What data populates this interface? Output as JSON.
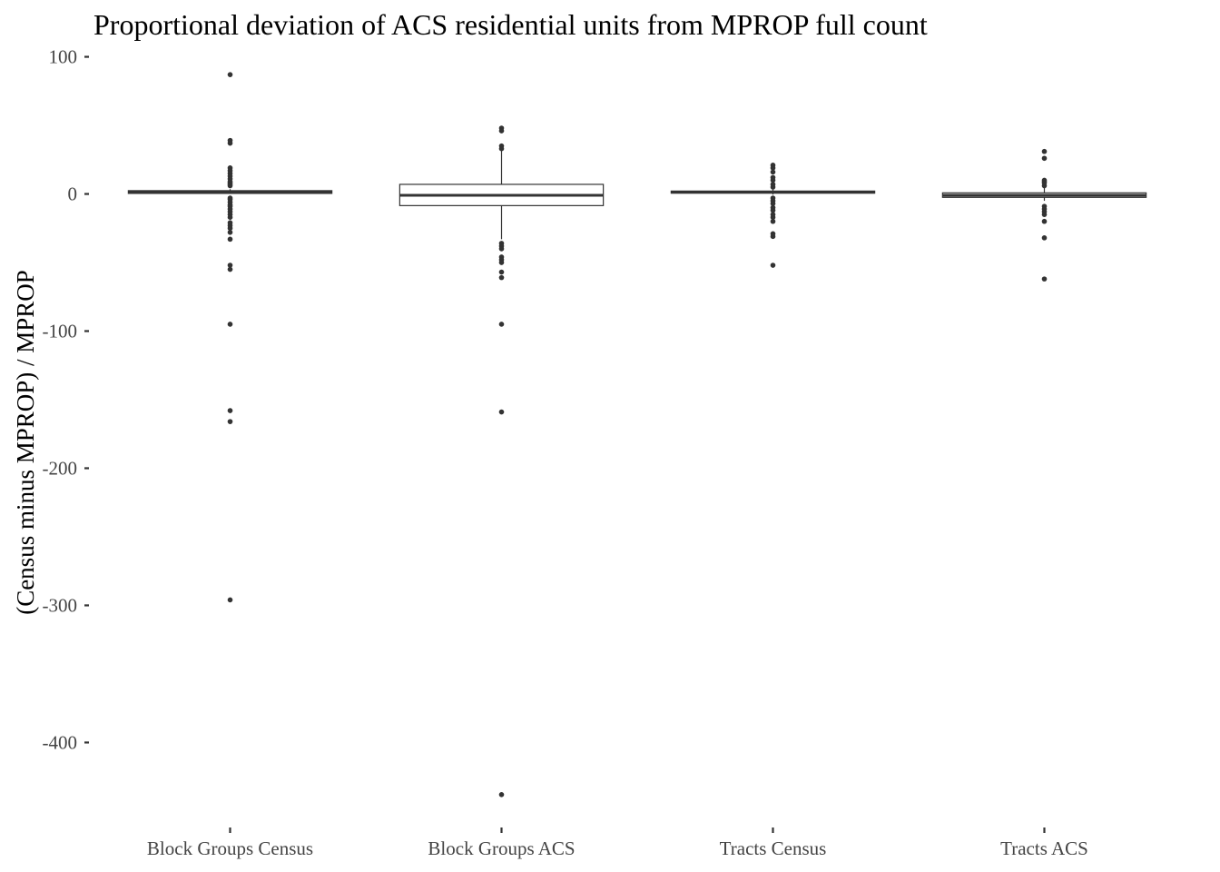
{
  "chart_data": {
    "type": "boxplot",
    "title": "Proportional deviation of ACS residential units from MPROP full count",
    "xlabel": "",
    "ylabel": "(Census minus MPROP) / MPROP",
    "ylim": [
      -458,
      105
    ],
    "yticks": [
      100,
      0,
      -100,
      -200,
      -300,
      -400
    ],
    "grid": false,
    "categories": [
      "Block Groups Census",
      "Block Groups ACS",
      "Tracts Census",
      "Tracts ACS"
    ],
    "series": [
      {
        "q1": 0.4,
        "median": 1.2,
        "q3": 2.4,
        "whisker_low": 0,
        "whisker_high": 3.5,
        "outliers": [
          87,
          39,
          37,
          19,
          17,
          15,
          13,
          11,
          9,
          8,
          7,
          6,
          -3,
          -4,
          -6,
          -8,
          -9,
          -11,
          -13,
          -15,
          -17,
          -21,
          -23,
          -25,
          -28,
          -33,
          -52,
          -55,
          -95,
          -158,
          -166,
          -296
        ]
      },
      {
        "q1": -8.5,
        "median": -1.0,
        "q3": 7.0,
        "whisker_low": -33,
        "whisker_high": 32,
        "outliers": [
          48,
          46,
          35,
          33,
          -36,
          -38,
          -40,
          -46,
          -48,
          -50,
          -57,
          -61,
          -95,
          -159,
          -438
        ]
      },
      {
        "q1": 0.6,
        "median": 1.3,
        "q3": 2.1,
        "whisker_low": -0.5,
        "whisker_high": 3.2,
        "outliers": [
          21,
          19,
          16,
          12,
          10,
          7,
          5,
          -3,
          -5,
          -7,
          -10,
          -12,
          -15,
          -17,
          -20,
          -29,
          -31,
          -52
        ]
      },
      {
        "q1": -2.5,
        "median": -1.0,
        "q3": 0.8,
        "whisker_low": -5,
        "whisker_high": 5,
        "outliers": [
          31,
          26,
          10,
          9,
          8,
          6,
          -9,
          -11,
          -13,
          -15,
          -20,
          -32,
          -62
        ]
      }
    ]
  }
}
